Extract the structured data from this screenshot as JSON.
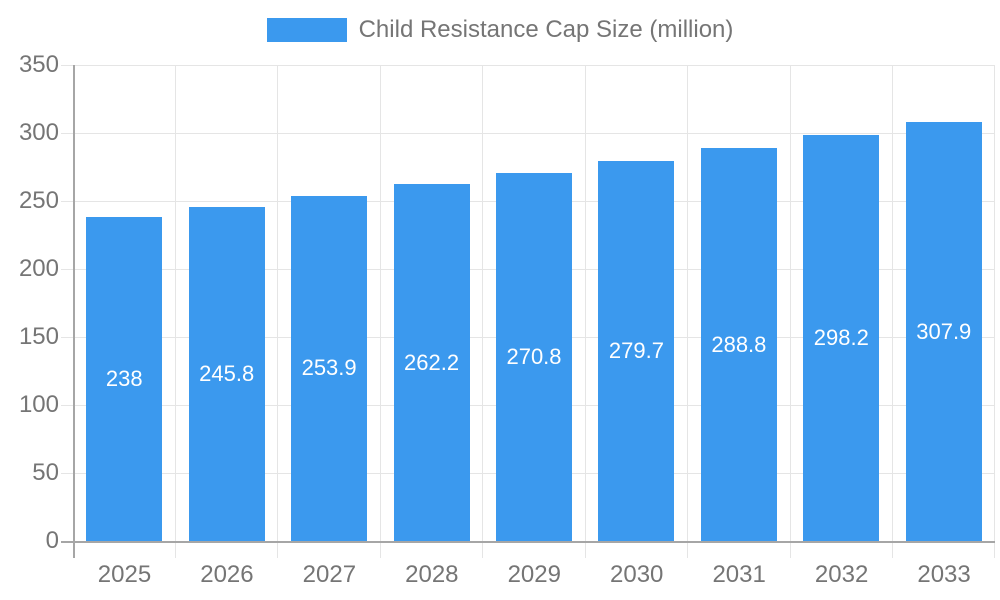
{
  "chart_data": {
    "type": "bar",
    "title": "",
    "series_name": "Child Resistance Cap Size (million)",
    "categories": [
      "2025",
      "2026",
      "2027",
      "2028",
      "2029",
      "2030",
      "2031",
      "2032",
      "2033"
    ],
    "values": [
      238,
      245.8,
      253.9,
      262.2,
      270.8,
      279.7,
      288.8,
      298.2,
      307.9
    ],
    "value_labels": [
      "238",
      "245.8",
      "253.9",
      "262.2",
      "270.8",
      "279.7",
      "288.8",
      "298.2",
      "307.9"
    ],
    "xlabel": "",
    "ylabel": "",
    "ylim": [
      0,
      350
    ],
    "yticks": [
      0,
      50,
      100,
      150,
      200,
      250,
      300,
      350
    ],
    "grid": true,
    "legend_position": "top",
    "colors": {
      "bar": "#3B99EE",
      "value_label": "#FFFFFF",
      "axis_text": "#757575",
      "grid_line": "#E5E5E5",
      "axis_line": "#A6A6A6",
      "background": "#FFFFFF"
    }
  }
}
